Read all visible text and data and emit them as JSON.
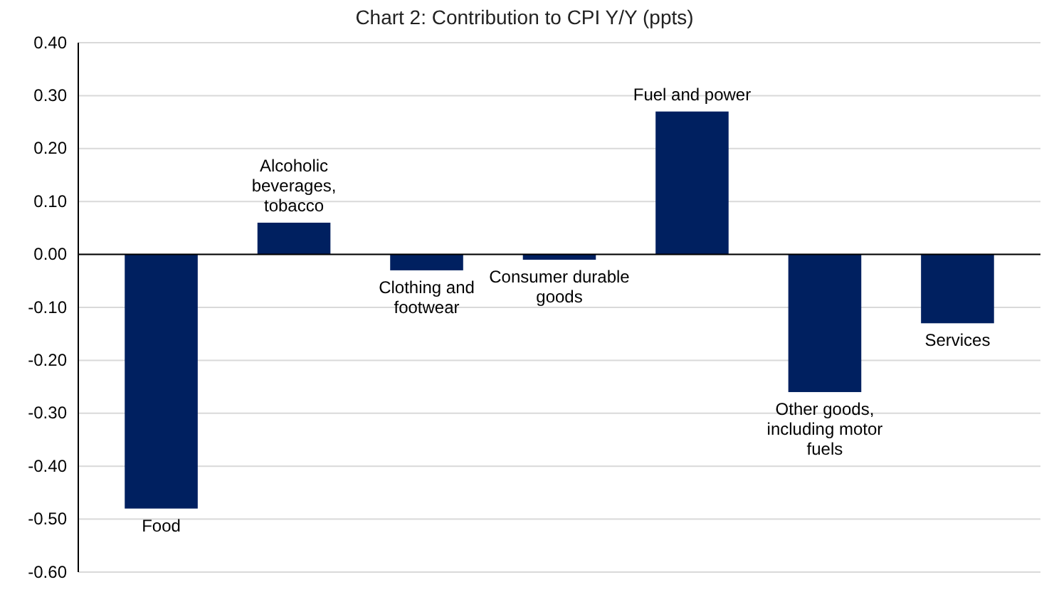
{
  "chart_data": {
    "type": "bar",
    "title": "Chart 2: Contribution to CPI Y/Y (ppts)",
    "categories": [
      "Food",
      "Alcoholic beverages, tobacco",
      "Clothing and footwear",
      "Consumer durable goods",
      "Fuel and power",
      "Other goods, including motor fuels",
      "Services"
    ],
    "values": [
      -0.48,
      0.06,
      -0.03,
      -0.01,
      0.27,
      -0.26,
      -0.13
    ],
    "color": "#002060",
    "ylim": [
      -0.6,
      0.4
    ],
    "yticks": [
      {
        "value": -0.6,
        "label": "-0.60"
      },
      {
        "value": -0.5,
        "label": "-0.50"
      },
      {
        "value": -0.4,
        "label": "-0.40"
      },
      {
        "value": -0.3,
        "label": "-0.30"
      },
      {
        "value": -0.2,
        "label": "-0.20"
      },
      {
        "value": -0.1,
        "label": "-0.10"
      },
      {
        "value": 0,
        "label": "0.00"
      },
      {
        "value": 0.1,
        "label": "0.10"
      },
      {
        "value": 0.2,
        "label": "0.20"
      },
      {
        "value": 0.3,
        "label": "0.30"
      },
      {
        "value": 0.4,
        "label": "0.40"
      }
    ],
    "grid": "y"
  }
}
